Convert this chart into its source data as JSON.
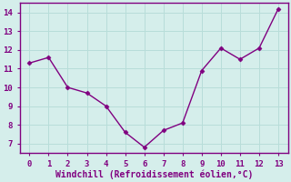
{
  "x": [
    0,
    1,
    2,
    3,
    4,
    5,
    6,
    7,
    8,
    9,
    10,
    11,
    12,
    13
  ],
  "y": [
    11.3,
    11.6,
    10.0,
    9.7,
    9.0,
    7.6,
    6.8,
    7.7,
    8.1,
    10.9,
    12.1,
    11.5,
    12.1,
    14.2
  ],
  "line_color": "#800080",
  "marker": "D",
  "marker_size": 2.5,
  "xlabel": "Windchill (Refroidissement éolien,°C)",
  "xlim": [
    -0.5,
    13.5
  ],
  "ylim": [
    6.5,
    14.5
  ],
  "xticks": [
    0,
    1,
    2,
    3,
    4,
    5,
    6,
    7,
    8,
    9,
    10,
    11,
    12,
    13
  ],
  "yticks": [
    7,
    8,
    9,
    10,
    11,
    12,
    13,
    14
  ],
  "bg_color": "#d5eeeb",
  "plot_bg_color": "#d5eeeb",
  "grid_color": "#b8ddd9",
  "spine_color": "#800080",
  "tick_color": "#800080",
  "label_color": "#800080",
  "tick_fontsize": 6.5,
  "xlabel_fontsize": 7.0,
  "linewidth": 1.0
}
